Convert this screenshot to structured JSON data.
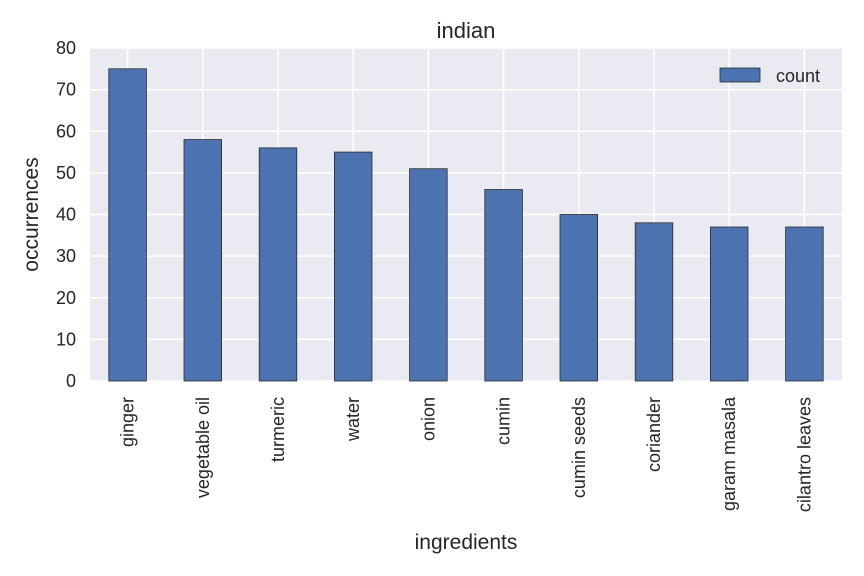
{
  "chart_data": {
    "type": "bar",
    "title": "indian",
    "xlabel": "ingredients",
    "ylabel": "occurrences",
    "categories": [
      "ginger",
      "vegetable oil",
      "turmeric",
      "water",
      "onion",
      "cumin",
      "cumin seeds",
      "coriander",
      "garam masala",
      "cilantro leaves"
    ],
    "series": [
      {
        "name": "count",
        "values": [
          75,
          58,
          56,
          55,
          51,
          46,
          40,
          38,
          37,
          37
        ]
      }
    ],
    "ylim": [
      0,
      80
    ],
    "yticks": [
      0,
      10,
      20,
      30,
      40,
      50,
      60,
      70,
      80
    ],
    "grid": true,
    "legend": "top-right",
    "colors": {
      "bar": "#4c72b0",
      "plot_bg": "#eaeaf2",
      "grid": "#ffffff",
      "bar_edge": "#2b2b2b"
    }
  }
}
